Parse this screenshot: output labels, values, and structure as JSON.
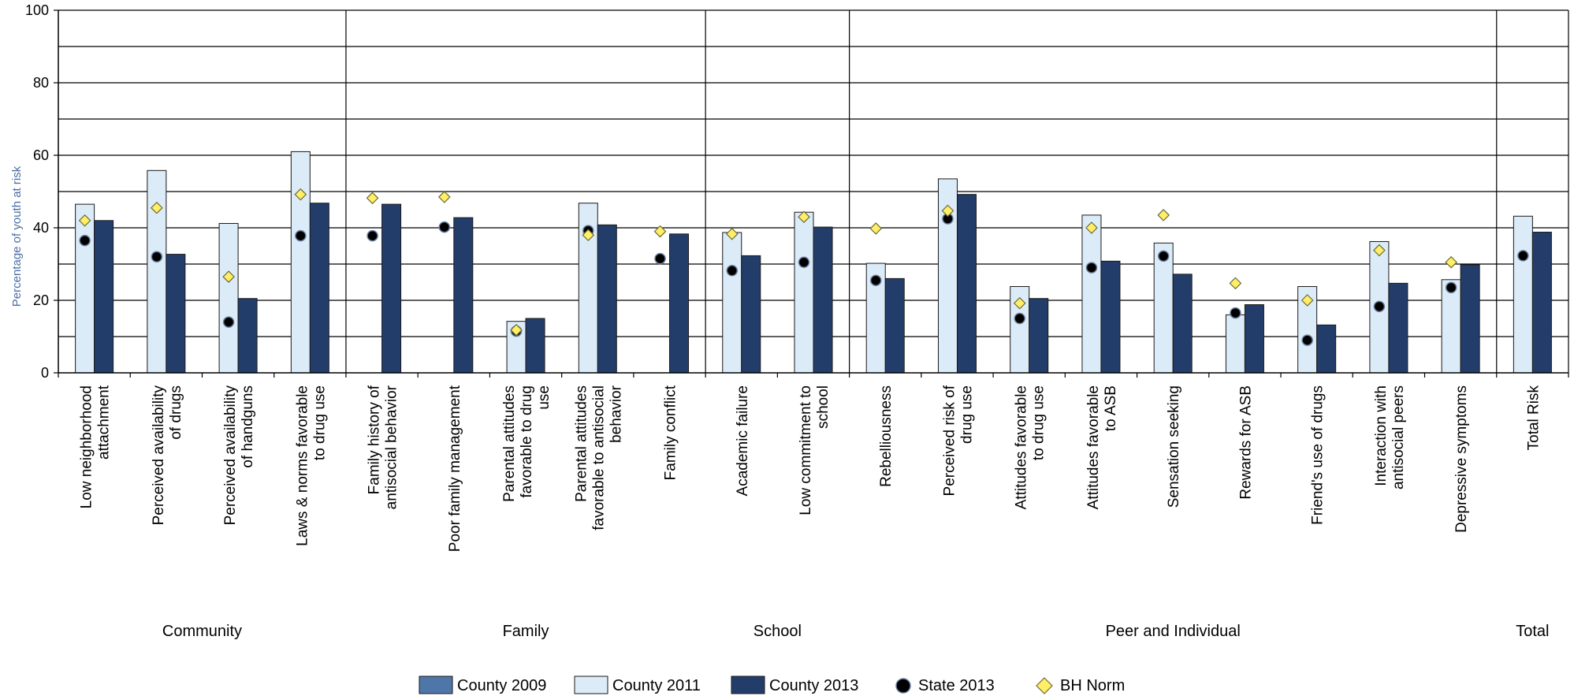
{
  "chart_data": {
    "type": "bar",
    "ylabel": "Percentage of youth at risk",
    "ylim": [
      0,
      100
    ],
    "yticks": [
      0,
      20,
      40,
      60,
      80,
      100
    ],
    "grid": true,
    "legend_position": "bottom",
    "colors": {
      "County 2009": "#4f76a8",
      "County 2011": "#dcebf8",
      "County 2013": "#233d6b",
      "State 2013": "#000000",
      "BH Norm": "#ffee66"
    },
    "legend": [
      "County 2009",
      "County 2011",
      "County 2013",
      "State 2013",
      "BH Norm"
    ],
    "groups": [
      {
        "name": "Community",
        "start": 0,
        "count": 4
      },
      {
        "name": "Family",
        "start": 4,
        "count": 5
      },
      {
        "name": "School",
        "start": 9,
        "count": 2
      },
      {
        "name": "Peer and Individual",
        "start": 11,
        "count": 9
      },
      {
        "name": "Total",
        "start": 20,
        "count": 1
      }
    ],
    "categories": [
      [
        "Low neighborhood",
        "attachment"
      ],
      [
        "Perceived availability",
        "of drugs"
      ],
      [
        "Perceived availability",
        "of handguns"
      ],
      [
        "Laws & norms favorable",
        "to drug use"
      ],
      [
        "Family history of",
        "antisocial behavior"
      ],
      [
        "Poor family management"
      ],
      [
        "Parental attitudes",
        "favorable to drug",
        "use"
      ],
      [
        "Parental attitudes",
        "favorable to antisocial",
        "behavior"
      ],
      [
        "Family conflict"
      ],
      [
        "Academic failure"
      ],
      [
        "Low commitment to",
        "school"
      ],
      [
        "Rebelliousness"
      ],
      [
        "Perceived risk of",
        "drug use"
      ],
      [
        "Attitudes favorable",
        "to drug use"
      ],
      [
        "Attitudes favorable",
        "to ASB"
      ],
      [
        "Sensation seeking"
      ],
      [
        "Rewards for ASB"
      ],
      [
        "Friend's use of drugs"
      ],
      [
        "Interaction with",
        "antisocial peers"
      ],
      [
        "Depressive symptoms"
      ],
      [
        "Total Risk"
      ]
    ],
    "series": [
      {
        "name": "County 2009",
        "kind": "bar",
        "values": [
          null,
          null,
          null,
          null,
          null,
          null,
          null,
          null,
          null,
          null,
          null,
          null,
          null,
          null,
          null,
          null,
          null,
          null,
          null,
          null,
          null
        ]
      },
      {
        "name": "County 2011",
        "kind": "bar",
        "values": [
          46.5,
          55.8,
          41.2,
          61,
          null,
          null,
          14.2,
          46.8,
          null,
          38.7,
          44.3,
          30.2,
          53.5,
          23.8,
          43.5,
          35.8,
          16,
          23.8,
          36.2,
          25.7,
          43.2
        ]
      },
      {
        "name": "County 2013",
        "kind": "bar",
        "values": [
          42,
          32.7,
          20.5,
          46.8,
          46.5,
          42.8,
          15,
          40.8,
          38.3,
          32.3,
          40.2,
          26,
          49.2,
          20.5,
          30.8,
          27.2,
          18.8,
          13.2,
          24.7,
          29.8,
          38.8
        ]
      },
      {
        "name": "State 2013",
        "kind": "dot",
        "values": [
          36.5,
          32,
          14,
          37.8,
          37.8,
          40.2,
          11.5,
          39.2,
          31.5,
          28.2,
          30.5,
          25.5,
          42.5,
          15,
          29,
          32.2,
          16.5,
          9,
          18.3,
          23.5,
          32.3
        ]
      },
      {
        "name": "BH Norm",
        "kind": "diamond",
        "values": [
          42,
          45.5,
          26.5,
          49.2,
          48.2,
          48.5,
          11.8,
          38,
          39,
          38.3,
          43,
          39.8,
          44.7,
          19.2,
          40,
          43.5,
          24.7,
          20,
          33.8,
          30.5,
          null
        ]
      }
    ]
  }
}
